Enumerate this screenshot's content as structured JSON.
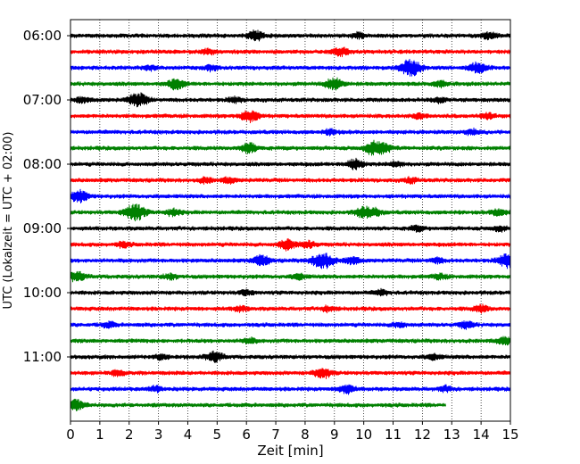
{
  "chart_data": {
    "type": "line",
    "title": "",
    "xlabel": "Zeit  [min]",
    "ylabel": "UTC (Lokalzeit = UTC + 02:00)",
    "xlim": [
      0,
      15
    ],
    "x_ticks": [
      "0",
      "1",
      "2",
      "3",
      "4",
      "5",
      "6",
      "7",
      "8",
      "9",
      "10",
      "11",
      "12",
      "13",
      "14",
      "15"
    ],
    "y_ticks": [
      "06:00",
      "07:00",
      "08:00",
      "09:00",
      "10:00",
      "11:00"
    ],
    "row_interval_min": 15,
    "start_time": "06:00",
    "grid": "x-only dotted",
    "row_colors": [
      "#000000",
      "#ff0000",
      "#0000ff",
      "#008000"
    ],
    "rows": [
      {
        "time": "06:00",
        "color": "#000000",
        "end_min": 15,
        "events": [
          [
            6.3,
            0.6
          ],
          [
            9.8,
            0.3
          ],
          [
            14.3,
            0.4
          ]
        ]
      },
      {
        "time": "06:15",
        "color": "#ff0000",
        "end_min": 15,
        "events": [
          [
            9.2,
            0.5
          ],
          [
            4.7,
            0.25
          ]
        ]
      },
      {
        "time": "06:30",
        "color": "#0000ff",
        "end_min": 15,
        "events": [
          [
            11.6,
            1.0
          ],
          [
            13.9,
            0.6
          ],
          [
            4.8,
            0.3
          ],
          [
            2.7,
            0.3
          ]
        ]
      },
      {
        "time": "06:45",
        "color": "#008000",
        "end_min": 15,
        "events": [
          [
            3.6,
            0.6
          ],
          [
            9.0,
            0.7
          ],
          [
            12.6,
            0.3
          ]
        ]
      },
      {
        "time": "07:00",
        "color": "#000000",
        "end_min": 15,
        "events": [
          [
            2.3,
            0.8
          ],
          [
            0.4,
            0.3
          ],
          [
            5.6,
            0.3
          ],
          [
            12.6,
            0.3
          ]
        ]
      },
      {
        "time": "07:15",
        "color": "#ff0000",
        "end_min": 15,
        "events": [
          [
            6.1,
            0.7
          ],
          [
            11.9,
            0.3
          ],
          [
            14.2,
            0.3
          ]
        ]
      },
      {
        "time": "07:30",
        "color": "#0000ff",
        "end_min": 15,
        "events": [
          [
            8.9,
            0.3
          ],
          [
            13.7,
            0.3
          ]
        ]
      },
      {
        "time": "07:45",
        "color": "#008000",
        "end_min": 15,
        "events": [
          [
            6.1,
            0.6
          ],
          [
            10.3,
            0.7
          ],
          [
            10.7,
            0.5
          ]
        ]
      },
      {
        "time": "08:00",
        "color": "#000000",
        "end_min": 15,
        "events": [
          [
            9.7,
            0.6
          ],
          [
            11.1,
            0.3
          ]
        ]
      },
      {
        "time": "08:15",
        "color": "#ff0000",
        "end_min": 15,
        "events": [
          [
            4.6,
            0.3
          ],
          [
            5.4,
            0.3
          ],
          [
            11.6,
            0.3
          ]
        ]
      },
      {
        "time": "08:30",
        "color": "#0000ff",
        "end_min": 15,
        "events": [
          [
            0.3,
            0.7
          ]
        ]
      },
      {
        "time": "08:45",
        "color": "#008000",
        "end_min": 15,
        "events": [
          [
            2.2,
            1.0
          ],
          [
            3.5,
            0.4
          ],
          [
            10.0,
            0.6
          ],
          [
            10.4,
            0.4
          ],
          [
            14.6,
            0.4
          ]
        ]
      },
      {
        "time": "09:00",
        "color": "#000000",
        "end_min": 15,
        "events": [
          [
            11.8,
            0.3
          ],
          [
            14.6,
            0.3
          ]
        ]
      },
      {
        "time": "09:15",
        "color": "#ff0000",
        "end_min": 15,
        "events": [
          [
            7.4,
            0.6
          ],
          [
            1.8,
            0.3
          ],
          [
            8.1,
            0.4
          ]
        ]
      },
      {
        "time": "09:30",
        "color": "#0000ff",
        "end_min": 15,
        "events": [
          [
            6.5,
            0.6
          ],
          [
            8.6,
            1.0
          ],
          [
            9.6,
            0.4
          ],
          [
            14.9,
            0.8
          ],
          [
            12.5,
            0.3
          ]
        ]
      },
      {
        "time": "09:45",
        "color": "#008000",
        "end_min": 15,
        "events": [
          [
            0.2,
            0.6
          ],
          [
            3.4,
            0.3
          ],
          [
            7.8,
            0.3
          ],
          [
            12.6,
            0.3
          ]
        ]
      },
      {
        "time": "10:00",
        "color": "#000000",
        "end_min": 15,
        "events": [
          [
            6.0,
            0.3
          ],
          [
            10.6,
            0.3
          ]
        ]
      },
      {
        "time": "10:15",
        "color": "#ff0000",
        "end_min": 15,
        "events": [
          [
            5.8,
            0.3
          ],
          [
            8.8,
            0.3
          ],
          [
            14.0,
            0.4
          ]
        ]
      },
      {
        "time": "10:30",
        "color": "#0000ff",
        "end_min": 15,
        "events": [
          [
            1.3,
            0.3
          ],
          [
            11.2,
            0.3
          ],
          [
            13.5,
            0.4
          ]
        ]
      },
      {
        "time": "10:45",
        "color": "#008000",
        "end_min": 15,
        "events": [
          [
            6.1,
            0.3
          ],
          [
            14.8,
            0.4
          ]
        ]
      },
      {
        "time": "11:00",
        "color": "#000000",
        "end_min": 15,
        "events": [
          [
            4.9,
            0.6
          ],
          [
            3.1,
            0.3
          ],
          [
            12.4,
            0.3
          ]
        ]
      },
      {
        "time": "11:15",
        "color": "#ff0000",
        "end_min": 15,
        "events": [
          [
            8.6,
            0.6
          ],
          [
            1.6,
            0.3
          ]
        ]
      },
      {
        "time": "11:30",
        "color": "#0000ff",
        "end_min": 15,
        "events": [
          [
            2.9,
            0.3
          ],
          [
            9.4,
            0.5
          ],
          [
            12.8,
            0.3
          ]
        ]
      },
      {
        "time": "11:45",
        "color": "#008000",
        "end_min": 12.8,
        "events": [
          [
            0.2,
            0.6
          ]
        ]
      }
    ]
  }
}
